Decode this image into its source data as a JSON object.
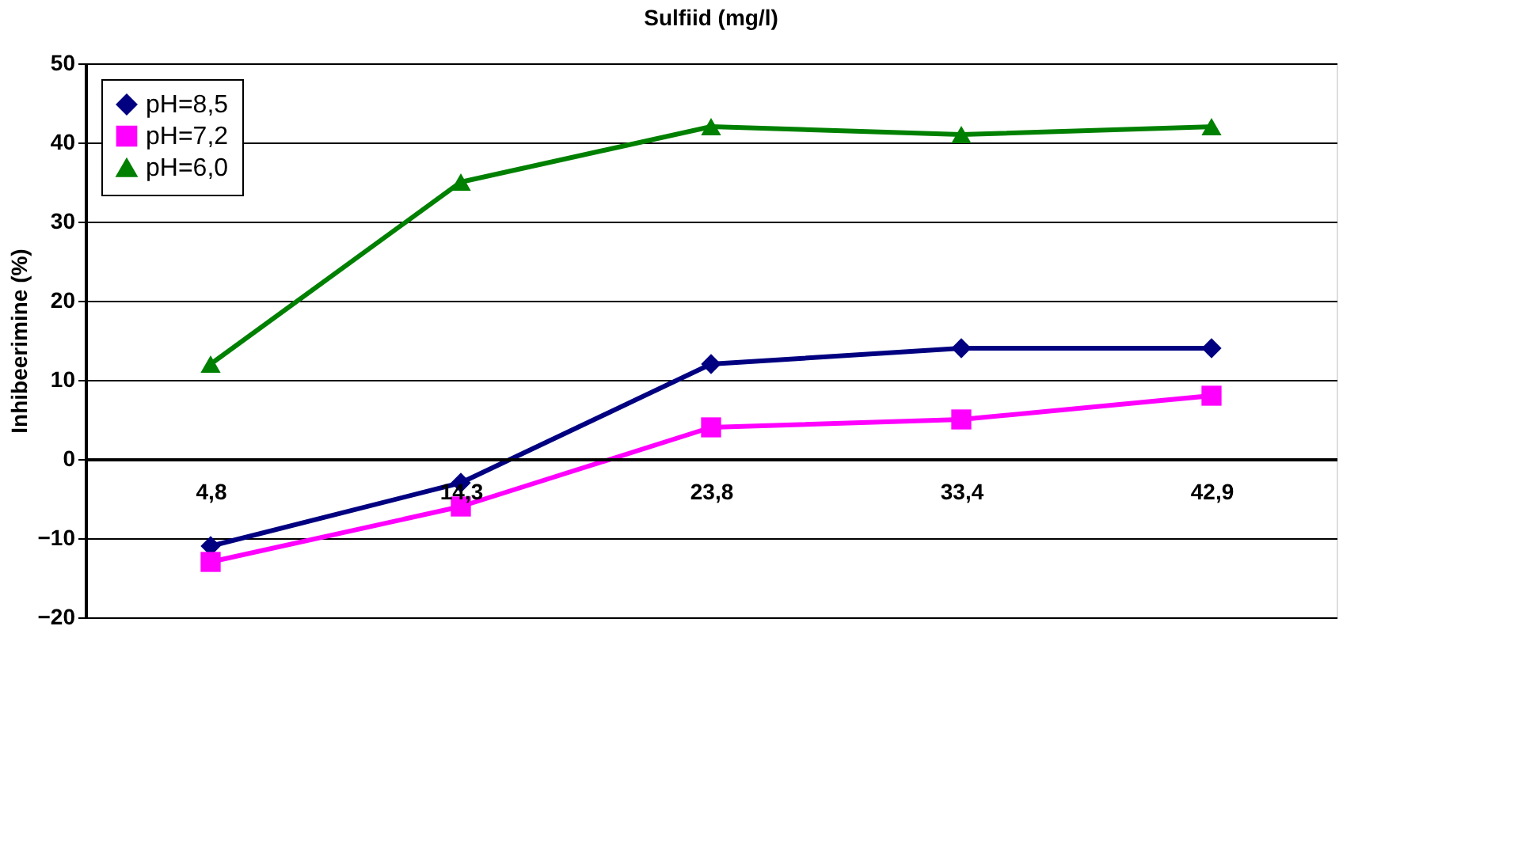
{
  "chart_data": {
    "type": "line",
    "title": "Sulfiid (mg/l)",
    "ylabel": "Inhibeerimine (%)",
    "categories": [
      "4,8",
      "14,3",
      "23,8",
      "33,4",
      "42,9"
    ],
    "series": [
      {
        "name": "pH=8,5",
        "color": "#000080",
        "marker": "diamond",
        "values": [
          -11,
          -3,
          12,
          14,
          14
        ]
      },
      {
        "name": "pH=7,2",
        "color": "#ff00ff",
        "marker": "square",
        "values": [
          -13,
          -6,
          4,
          5,
          8
        ]
      },
      {
        "name": "pH=6,0",
        "color": "#008000",
        "marker": "triangle",
        "values": [
          12,
          35,
          42,
          41,
          42
        ]
      }
    ],
    "ylim": [
      -20,
      50
    ],
    "yticks": [
      -20,
      -10,
      0,
      10,
      20,
      30,
      40,
      50
    ],
    "grid": "y",
    "legend": "top left",
    "line_style": "solid"
  }
}
